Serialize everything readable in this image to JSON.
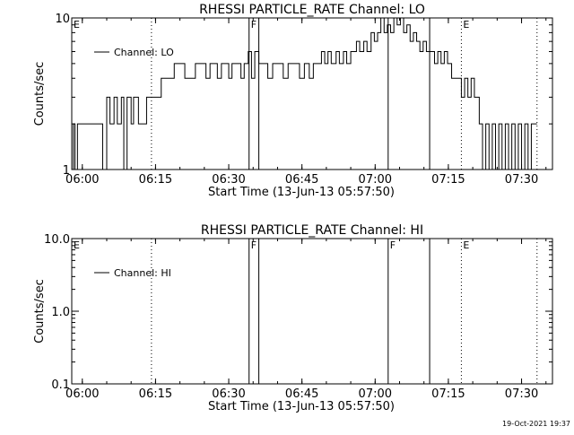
{
  "footer": {
    "timestamp": "19-Oct-2021 19:37"
  },
  "chart_data": [
    {
      "type": "line",
      "title": "RHESSI PARTICLE_RATE Channel: LO",
      "xlabel": "Start Time (13-Jun-13 05:57:50)",
      "ylabel": "Counts/sec",
      "y_scale": "log",
      "ylim": [
        1,
        10
      ],
      "xlim": [
        "05:57:50",
        "07:36:20"
      ],
      "x_ticks": [
        "06:00",
        "06:15",
        "06:30",
        "06:45",
        "07:00",
        "07:15",
        "07:30"
      ],
      "y_ticks": [
        "1",
        "10"
      ],
      "legend": {
        "placement": "top-left",
        "entries": [
          "Channel: LO"
        ]
      },
      "markers": [
        {
          "label": "E",
          "time": "05:57:50",
          "style": "dotted"
        },
        {
          "label": "",
          "time": "06:14:10",
          "style": "dotted"
        },
        {
          "label": "F",
          "time": "06:34:10",
          "style": "solid"
        },
        {
          "label": "",
          "time": "06:36:10",
          "style": "solid"
        },
        {
          "label": "",
          "time": "07:02:40",
          "style": "solid"
        },
        {
          "label": "",
          "time": "07:11:10",
          "style": "solid"
        },
        {
          "label": "E",
          "time": "07:17:40",
          "style": "dotted"
        },
        {
          "label": "",
          "time": "07:33:10",
          "style": "dotted"
        }
      ],
      "series": [
        {
          "name": "Channel: LO",
          "points": [
            [
              "05:57:50",
              1.0
            ],
            [
              "05:58:10",
              2.0
            ],
            [
              "05:58:30",
              1.0
            ],
            [
              "05:59:00",
              2.0
            ],
            [
              "06:03:40",
              2.0
            ],
            [
              "06:04:10",
              1.0
            ],
            [
              "06:05:00",
              3.0
            ],
            [
              "06:05:40",
              2.0
            ],
            [
              "06:06:30",
              3.0
            ],
            [
              "06:07:10",
              2.0
            ],
            [
              "06:08:00",
              3.0
            ],
            [
              "06:08:30",
              1.0
            ],
            [
              "06:09:10",
              3.0
            ],
            [
              "06:10:00",
              2.0
            ],
            [
              "06:10:30",
              3.0
            ],
            [
              "06:11:30",
              2.0
            ],
            [
              "06:13:10",
              3.0
            ],
            [
              "06:14:10",
              3.0
            ],
            [
              "06:15:40",
              3.0
            ],
            [
              "06:16:10",
              4.0
            ],
            [
              "06:18:20",
              4.0
            ],
            [
              "06:18:50",
              5.0
            ],
            [
              "06:20:30",
              5.0
            ],
            [
              "06:21:00",
              4.0
            ],
            [
              "06:22:40",
              4.0
            ],
            [
              "06:23:10",
              5.0
            ],
            [
              "06:24:50",
              5.0
            ],
            [
              "06:25:20",
              4.0
            ],
            [
              "06:26:10",
              5.0
            ],
            [
              "06:27:40",
              4.0
            ],
            [
              "06:28:30",
              5.0
            ],
            [
              "06:30:00",
              4.0
            ],
            [
              "06:30:40",
              5.0
            ],
            [
              "06:32:30",
              4.0
            ],
            [
              "06:33:10",
              5.0
            ],
            [
              "06:34:00",
              6.0
            ],
            [
              "06:34:40",
              4.0
            ],
            [
              "06:35:20",
              6.0
            ],
            [
              "06:36:10",
              5.0
            ],
            [
              "06:37:30",
              5.0
            ],
            [
              "06:38:00",
              4.0
            ],
            [
              "06:39:00",
              5.0
            ],
            [
              "06:40:40",
              5.0
            ],
            [
              "06:41:10",
              4.0
            ],
            [
              "06:42:10",
              5.0
            ],
            [
              "06:44:00",
              5.0
            ],
            [
              "06:44:30",
              4.0
            ],
            [
              "06:45:30",
              5.0
            ],
            [
              "06:46:30",
              4.0
            ],
            [
              "06:47:20",
              5.0
            ],
            [
              "06:48:30",
              5.0
            ],
            [
              "06:49:00",
              6.0
            ],
            [
              "06:49:40",
              5.0
            ],
            [
              "06:50:20",
              6.0
            ],
            [
              "06:51:00",
              5.0
            ],
            [
              "06:52:00",
              6.0
            ],
            [
              "06:52:40",
              5.0
            ],
            [
              "06:53:30",
              6.0
            ],
            [
              "06:54:10",
              5.0
            ],
            [
              "06:55:00",
              6.0
            ],
            [
              "06:56:10",
              7.0
            ],
            [
              "06:56:50",
              6.0
            ],
            [
              "06:57:40",
              7.0
            ],
            [
              "06:58:20",
              6.0
            ],
            [
              "06:59:10",
              8.0
            ],
            [
              "06:59:50",
              7.0
            ],
            [
              "07:00:30",
              8.0
            ],
            [
              "07:01:10",
              10.0
            ],
            [
              "07:01:50",
              8.0
            ],
            [
              "07:02:30",
              9.0
            ],
            [
              "07:03:10",
              8.0
            ],
            [
              "07:03:50",
              10.0
            ],
            [
              "07:04:30",
              9.0
            ],
            [
              "07:05:10",
              10.0
            ],
            [
              "07:05:50",
              8.0
            ],
            [
              "07:06:30",
              9.0
            ],
            [
              "07:07:10",
              7.0
            ],
            [
              "07:07:50",
              8.0
            ],
            [
              "07:08:30",
              7.0
            ],
            [
              "07:09:10",
              6.0
            ],
            [
              "07:09:50",
              7.0
            ],
            [
              "07:10:30",
              6.0
            ],
            [
              "07:11:40",
              6.0
            ],
            [
              "07:12:10",
              5.0
            ],
            [
              "07:12:50",
              6.0
            ],
            [
              "07:13:30",
              5.0
            ],
            [
              "07:14:10",
              6.0
            ],
            [
              "07:14:50",
              5.0
            ],
            [
              "07:15:40",
              4.0
            ],
            [
              "07:17:10",
              4.0
            ],
            [
              "07:17:40",
              3.0
            ],
            [
              "07:18:20",
              4.0
            ],
            [
              "07:19:00",
              3.0
            ],
            [
              "07:19:40",
              4.0
            ],
            [
              "07:20:20",
              3.0
            ],
            [
              "07:21:20",
              2.0
            ],
            [
              "07:22:00",
              1.0
            ],
            [
              "07:22:40",
              2.0
            ],
            [
              "07:23:20",
              1.0
            ],
            [
              "07:24:00",
              2.0
            ],
            [
              "07:24:40",
              1.0
            ],
            [
              "07:25:20",
              2.0
            ],
            [
              "07:26:00",
              1.0
            ],
            [
              "07:26:40",
              2.0
            ],
            [
              "07:27:20",
              1.0
            ],
            [
              "07:28:00",
              2.0
            ],
            [
              "07:28:40",
              1.0
            ],
            [
              "07:29:20",
              2.0
            ],
            [
              "07:30:00",
              1.0
            ],
            [
              "07:30:40",
              2.0
            ],
            [
              "07:31:20",
              1.0
            ],
            [
              "07:32:00",
              2.0
            ],
            [
              "07:33:10",
              2.0
            ]
          ]
        }
      ]
    },
    {
      "type": "line",
      "title": "RHESSI PARTICLE_RATE Channel: HI",
      "xlabel": "Start Time (13-Jun-13 05:57:50)",
      "ylabel": "Counts/sec",
      "y_scale": "log",
      "ylim": [
        0.1,
        10.0
      ],
      "xlim": [
        "05:57:50",
        "07:36:20"
      ],
      "x_ticks": [
        "06:00",
        "06:15",
        "06:30",
        "06:45",
        "07:00",
        "07:15",
        "07:30"
      ],
      "y_ticks": [
        "0.1",
        "1.0",
        "10.0"
      ],
      "legend": {
        "placement": "top-left",
        "entries": [
          "Channel: HI"
        ]
      },
      "markers": [
        {
          "label": "E",
          "time": "05:57:50",
          "style": "dotted"
        },
        {
          "label": "",
          "time": "06:14:10",
          "style": "dotted"
        },
        {
          "label": "F",
          "time": "06:34:10",
          "style": "solid"
        },
        {
          "label": "",
          "time": "06:36:10",
          "style": "solid"
        },
        {
          "label": "F",
          "time": "07:02:40",
          "style": "solid"
        },
        {
          "label": "",
          "time": "07:11:10",
          "style": "solid"
        },
        {
          "label": "E",
          "time": "07:17:40",
          "style": "dotted"
        },
        {
          "label": "",
          "time": "07:33:10",
          "style": "dotted"
        }
      ],
      "series": [
        {
          "name": "Channel: HI",
          "points": []
        }
      ]
    }
  ]
}
